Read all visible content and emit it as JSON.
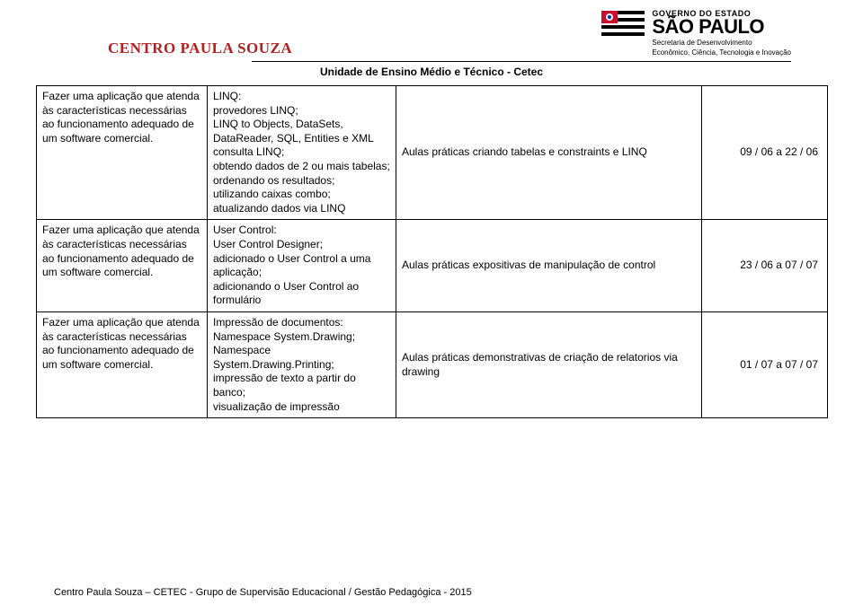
{
  "header": {
    "left_logo_text": "CENTRO PAULA SOUZA",
    "gov_top": "GOVERNO DO ESTADO",
    "gov_main": "SÃO PAULO",
    "gov_sub1": "Secretaria de Desenvolvimento",
    "gov_sub2": "Econômico, Ciência, Tecnologia e Inovação"
  },
  "unit_title": "Unidade de Ensino Médio e Técnico - Cetec",
  "rows": [
    {
      "col1": "Fazer uma aplicação que atenda às características necessárias ao funcionamento adequado de um software comercial.",
      "col2": " LINQ:\nprovedores LINQ;\nLINQ to Objects, DataSets, DataReader, SQL, Entities e XML\nconsulta LINQ;\nobtendo dados de 2 ou mais tabelas;\nordenando os resultados;\nutilizando caixas combo;\natualizando dados via LINQ",
      "col3": "Aulas práticas criando tabelas e constraints e LINQ",
      "col4": "09 / 06  a 22 / 06"
    },
    {
      "col1": "Fazer uma aplicação que atenda às características necessárias ao funcionamento adequado de um software comercial.",
      "col2": "User Control:\nUser Control Designer;\nadicionado o User Control a uma aplicação;\nadicionando o User Control ao formulário",
      "col3": "Aulas práticas expositivas de manipulação de control",
      "col4": "23 / 06  a 07 / 07"
    },
    {
      "col1": "Fazer uma aplicação que atenda às características necessárias ao funcionamento adequado de um software comercial.",
      "col2": "Impressão de documentos:\nNamespace System.Drawing;\nNamespace System.Drawing.Printing;\nimpressão de texto a partir do banco;\nvisualização de impressão",
      "col3": "Aulas práticas demonstrativas de criação de relatorios via drawing",
      "col4": "01 / 07 a 07 / 07"
    }
  ],
  "footer": "Centro Paula Souza – CETEC - Grupo de Supervisão Educacional / Gestão Pedagógica - 2015"
}
